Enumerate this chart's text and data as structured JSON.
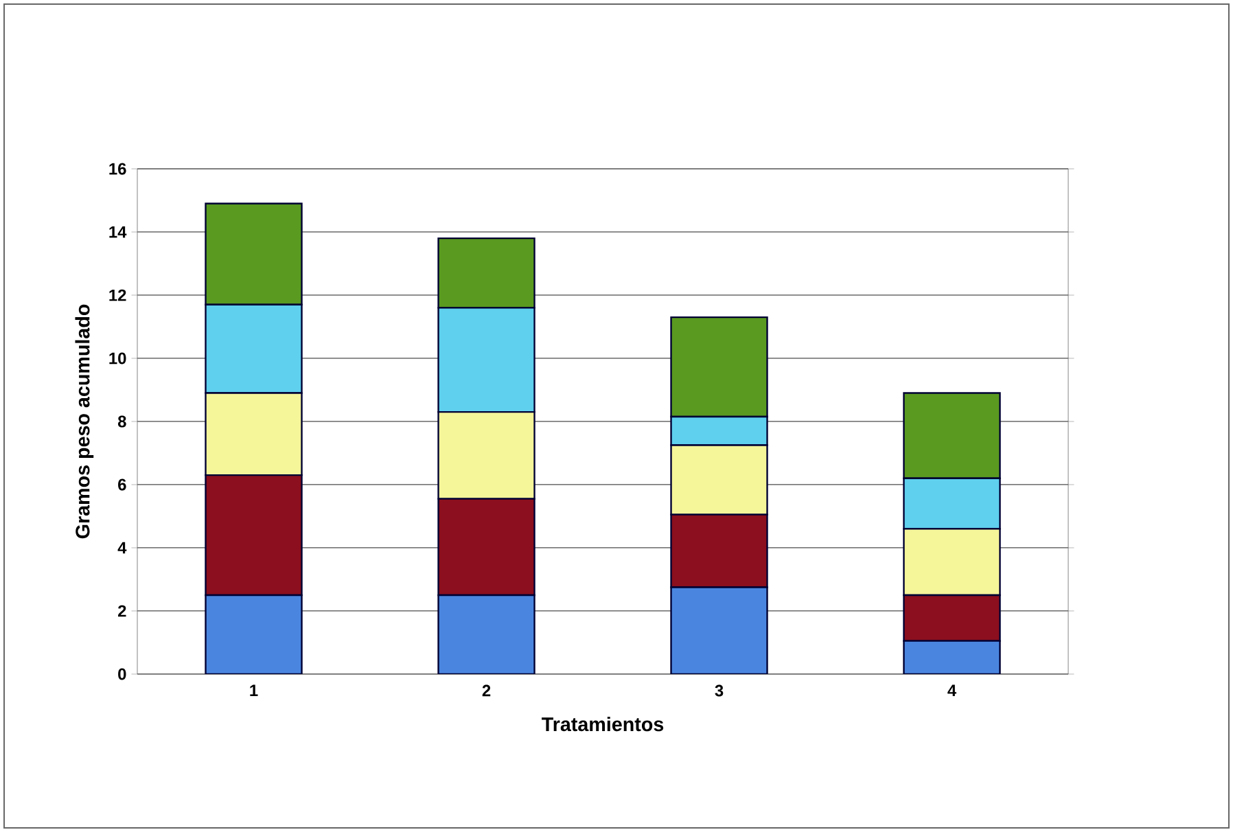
{
  "chart_data": {
    "type": "bar",
    "stacked": true,
    "xlabel": "Tratamientos",
    "ylabel": "Gramos peso acumulado",
    "categories": [
      "1",
      "2",
      "3",
      "4"
    ],
    "series": [
      {
        "color": "#4a86e0",
        "values": [
          2.5,
          2.5,
          2.75,
          1.05
        ]
      },
      {
        "color": "#8b0f1e",
        "values": [
          3.8,
          3.05,
          2.3,
          1.45
        ]
      },
      {
        "color": "#f5f59a",
        "values": [
          2.6,
          2.75,
          2.2,
          2.1
        ]
      },
      {
        "color": "#5fd0ee",
        "values": [
          2.8,
          3.3,
          0.9,
          1.6
        ]
      },
      {
        "color": "#5a9a20",
        "values": [
          3.2,
          2.2,
          3.15,
          2.7
        ]
      }
    ],
    "ylim": [
      0,
      16
    ],
    "yticks": [
      0,
      2,
      4,
      6,
      8,
      10,
      12,
      14,
      16
    ],
    "grid": "y"
  }
}
